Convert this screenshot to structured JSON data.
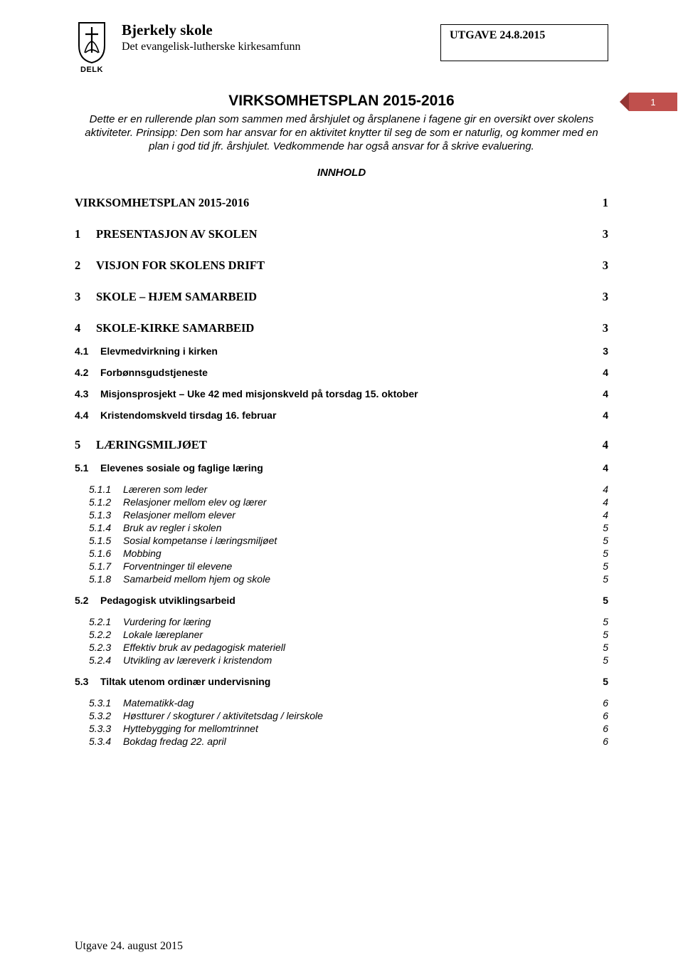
{
  "header": {
    "logo_label": "DELK",
    "school_name": "Bjerkely skole",
    "subtitle": "Det evangelisk-lutherske kirkesamfunn",
    "edition": "UTGAVE 24.8.2015"
  },
  "page_number": "1",
  "doc_title": "VIRKSOMHETSPLAN 2015-2016",
  "intro": "Dette er en rullerende plan som sammen med årshjulet og årsplanene i fagene gir en oversikt over skolens aktiviteter. Prinsipp: Den som har ansvar for en aktivitet knytter til seg de som er naturlig, og kommer med en plan i god tid jfr. årshjulet. Vedkommende har også ansvar for å skrive evaluering.",
  "innhold_label": "INNHOLD",
  "toc": [
    {
      "level": 1,
      "num": "",
      "label": "VIRKSOMHETSPLAN 2015-2016",
      "page": "1"
    },
    {
      "level": 1,
      "num": "1",
      "label": "PRESENTASJON AV SKOLEN",
      "page": "3"
    },
    {
      "level": 1,
      "num": "2",
      "label": "VISJON FOR SKOLENS DRIFT",
      "page": "3"
    },
    {
      "level": 1,
      "num": "3",
      "label": "SKOLE – HJEM SAMARBEID",
      "page": "3"
    },
    {
      "level": 1,
      "num": "4",
      "label": "SKOLE-KIRKE SAMARBEID",
      "page": "3"
    },
    {
      "level": 2,
      "num": "4.1",
      "label": "Elevmedvirkning i kirken",
      "page": "3"
    },
    {
      "level": 2,
      "num": "4.2",
      "label": "Forbønnsgudstjeneste",
      "page": "4"
    },
    {
      "level": 2,
      "num": "4.3",
      "label": "Misjonsprosjekt – Uke 42 med misjonskveld på torsdag 15. oktober",
      "page": "4"
    },
    {
      "level": 2,
      "num": "4.4",
      "label": "Kristendomskveld tirsdag 16. februar",
      "page": "4"
    },
    {
      "level": 1,
      "num": "5",
      "label": "LÆRINGSMILJØET",
      "page": "4"
    },
    {
      "level": 2,
      "num": "5.1",
      "label": "Elevenes sosiale og faglige læring",
      "page": "4"
    },
    {
      "level": 3,
      "num": "5.1.1",
      "label": "Læreren som leder",
      "page": "4"
    },
    {
      "level": 3,
      "num": "5.1.2",
      "label": "Relasjoner mellom elev og lærer",
      "page": "4"
    },
    {
      "level": 3,
      "num": "5.1.3",
      "label": "Relasjoner mellom elever",
      "page": "4"
    },
    {
      "level": 3,
      "num": "5.1.4",
      "label": "Bruk av regler i skolen",
      "page": "5"
    },
    {
      "level": 3,
      "num": "5.1.5",
      "label": "Sosial kompetanse i læringsmiljøet",
      "page": "5"
    },
    {
      "level": 3,
      "num": "5.1.6",
      "label": "Mobbing",
      "page": "5"
    },
    {
      "level": 3,
      "num": "5.1.7",
      "label": "Forventninger til elevene",
      "page": "5"
    },
    {
      "level": 3,
      "num": "5.1.8",
      "label": "Samarbeid mellom hjem og skole",
      "page": "5"
    },
    {
      "level": 2,
      "num": "5.2",
      "label": "Pedagogisk utviklingsarbeid",
      "page": "5"
    },
    {
      "level": 3,
      "num": "5.2.1",
      "label": "Vurdering for læring",
      "page": "5"
    },
    {
      "level": 3,
      "num": "5.2.2",
      "label": "Lokale læreplaner",
      "page": "5"
    },
    {
      "level": 3,
      "num": "5.2.3",
      "label": "Effektiv bruk av pedagogisk materiell",
      "page": "5"
    },
    {
      "level": 3,
      "num": "5.2.4",
      "label": "Utvikling av læreverk i kristendom",
      "page": "5"
    },
    {
      "level": 2,
      "num": "5.3",
      "label": "Tiltak utenom ordinær undervisning",
      "page": "5"
    },
    {
      "level": 3,
      "num": "5.3.1",
      "label": "Matematikk-dag",
      "page": "6"
    },
    {
      "level": 3,
      "num": "5.3.2",
      "label": "Høstturer / skogturer / aktivitetsdag / leirskole",
      "page": "6"
    },
    {
      "level": 3,
      "num": "5.3.3",
      "label": "Hyttebygging for mellomtrinnet",
      "page": "6"
    },
    {
      "level": 3,
      "num": "5.3.4",
      "label": "Bokdag fredag 22. april",
      "page": "6"
    }
  ],
  "footer": "Utgave 24. august 2015",
  "colors": {
    "badge_bg": "#c0504d",
    "badge_arrow": "#943634",
    "text": "#000000",
    "bg": "#ffffff"
  }
}
